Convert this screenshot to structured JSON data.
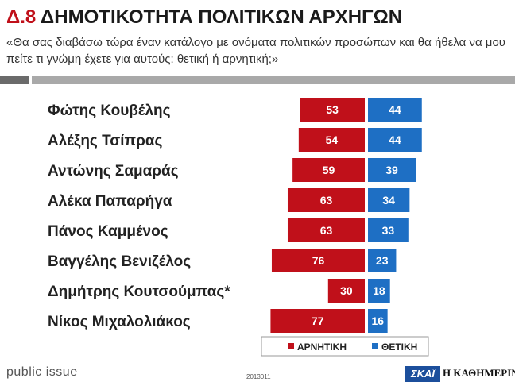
{
  "header": {
    "code": "Δ.8",
    "title": "ΔΗΜΟΤΙΚΟΤΗΤΑ ΠΟΛΙΤΙΚΩΝ ΑΡΧΗΓΩΝ",
    "subtitle": "«Θα σας διαβάσω τώρα έναν κατάλογο με ονόματα πολιτικών προσώπων και θα ήθελα να μου πείτε τι γνώμη έχετε για αυτούς: θετική ή αρνητική;»"
  },
  "footer": {
    "brand": "public issue",
    "code": "2013011",
    "logo_left": "ΣΚΑΪ",
    "logo_right": "Η ΚΑΘΗΜΕΡΙΝΗ"
  },
  "colors": {
    "negative": "#c0101a",
    "positive": "#1e6fc4",
    "title_accent": "#c0101a"
  },
  "chart_data": {
    "type": "bar",
    "orientation": "horizontal-diverging",
    "title": "ΔΗΜΟΤΙΚΟΤΗΤΑ ΠΟΛΙΤΙΚΩΝ ΑΡΧΗΓΩΝ",
    "categories": [
      "Φώτης Κουβέλης",
      "Αλέξης Τσίπρας",
      "Αντώνης Σαμαράς",
      "Αλέκα Παπαρήγα",
      "Πάνος Καμμένος",
      "Βαγγέλης Βενιζέλος",
      "Δημήτρης Κουτσούμπας*",
      "Νίκος Μιχαλολιάκος"
    ],
    "series": [
      {
        "name": "ΑΡΝΗΤΙΚΗ",
        "values": [
          53,
          54,
          59,
          63,
          63,
          76,
          30,
          77
        ]
      },
      {
        "name": "ΘΕΤΙΚΗ",
        "values": [
          44,
          44,
          39,
          34,
          33,
          23,
          18,
          16
        ]
      }
    ],
    "legend_position": "bottom-right"
  }
}
